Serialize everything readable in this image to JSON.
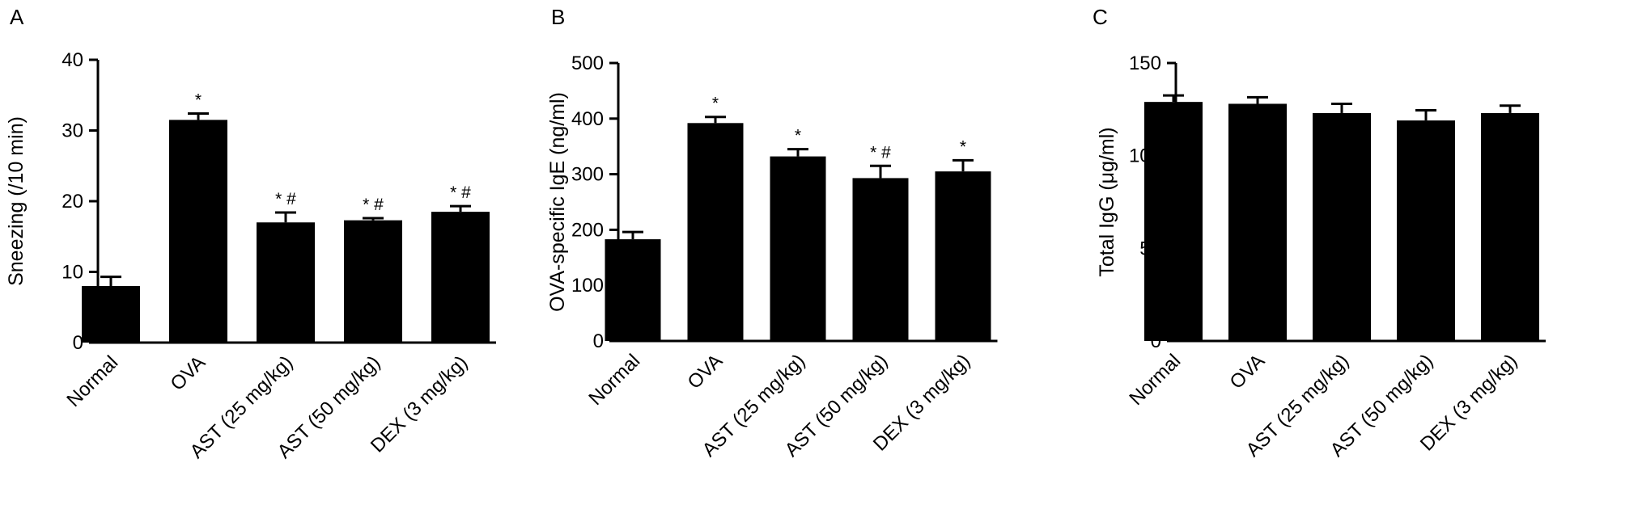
{
  "chart_data": [
    {
      "type": "bar",
      "panel_label": "A",
      "ylabel": "Sneezing (/10 min)",
      "ylim": [
        0,
        40
      ],
      "yticks": [
        0,
        10,
        20,
        30,
        40
      ],
      "categories": [
        "Normal",
        "OVA",
        "AST (25 mg/kg)",
        "AST (50 mg/kg)",
        "DEX (3 mg/kg)"
      ],
      "values": [
        8,
        31.5,
        17,
        17.3,
        18.5
      ],
      "errors": [
        1.3,
        0.9,
        1.4,
        0.3,
        0.8
      ],
      "annotations": [
        "",
        "*",
        "* #",
        "* #",
        "* #"
      ]
    },
    {
      "type": "bar",
      "panel_label": "B",
      "ylabel": "OVA-specific IgE (ng/ml)",
      "ylim": [
        0,
        500
      ],
      "yticks": [
        0,
        100,
        200,
        300,
        400,
        500
      ],
      "categories": [
        "Normal",
        "OVA",
        "AST (25 mg/kg)",
        "AST (50 mg/kg)",
        "DEX (3 mg/kg)"
      ],
      "values": [
        183,
        392,
        332,
        293,
        305
      ],
      "errors": [
        13,
        11,
        13,
        22,
        20
      ],
      "annotations": [
        "",
        "*",
        "*",
        "* #",
        "*"
      ]
    },
    {
      "type": "bar",
      "panel_label": "C",
      "ylabel": "Total IgG (μg/ml)",
      "ylim": [
        0,
        150
      ],
      "yticks": [
        0,
        50,
        100,
        150
      ],
      "categories": [
        "Normal",
        "OVA",
        "AST (25 mg/kg)",
        "AST (50 mg/kg)",
        "DEX (3 mg/kg)"
      ],
      "values": [
        129,
        128,
        123,
        119,
        123
      ],
      "errors": [
        3.5,
        3.5,
        5,
        5.5,
        4
      ],
      "annotations": [
        "",
        "",
        "",
        "",
        ""
      ]
    }
  ]
}
